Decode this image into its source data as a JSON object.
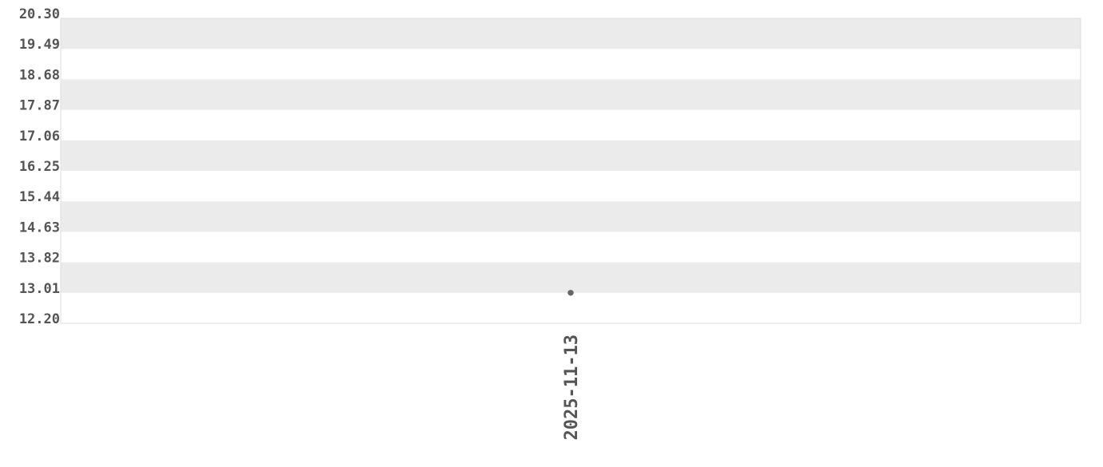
{
  "chart_data": {
    "type": "scatter",
    "title": "",
    "xlabel": "",
    "ylabel": "",
    "x_tick_labels": [
      "2025-11-13"
    ],
    "y_tick_labels": [
      "20.30",
      "19.49",
      "18.68",
      "17.87",
      "17.06",
      "16.25",
      "15.44",
      "14.63",
      "13.82",
      "13.01",
      "12.20"
    ],
    "ylim": [
      12.2,
      20.3
    ],
    "grid": "alternating horizontal bands",
    "series": [
      {
        "points": [
          {
            "x": "2025-11-13",
            "y": 13.01
          }
        ]
      }
    ],
    "colors": {
      "band": "#ebebeb",
      "point": "#666666",
      "text": "#555555",
      "border": "#dddddd"
    }
  }
}
